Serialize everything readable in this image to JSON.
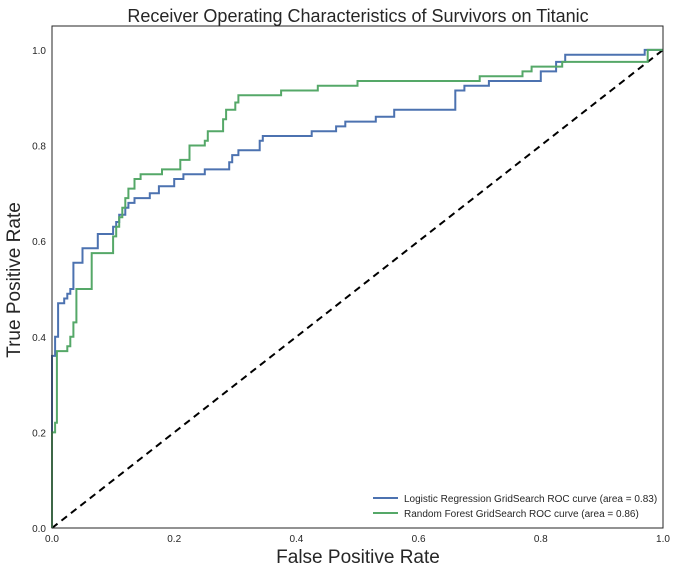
{
  "chart_data": {
    "type": "line",
    "title": "Receiver Operating Characteristics of Survivors on Titanic",
    "xlabel": "False Positive Rate",
    "ylabel": "True Positive Rate",
    "xlim": [
      0.0,
      1.0
    ],
    "ylim": [
      0.0,
      1.05
    ],
    "xticks": [
      "0.0",
      "0.2",
      "0.4",
      "0.6",
      "0.8",
      "1.0"
    ],
    "yticks": [
      "0.0",
      "0.2",
      "0.4",
      "0.6",
      "0.8",
      "1.0"
    ],
    "grid": false,
    "legend_position": "lower-right",
    "colors": {
      "logistic": "#4c72b0",
      "forest": "#55a868",
      "diagonal": "#000000"
    },
    "series": [
      {
        "name": "Logistic Regression GridSearch ROC curve (area = 0.83)",
        "color": "#4c72b0",
        "points": [
          [
            0.0,
            0.0
          ],
          [
            0.0,
            0.36
          ],
          [
            0.005,
            0.36
          ],
          [
            0.005,
            0.4
          ],
          [
            0.01,
            0.4
          ],
          [
            0.01,
            0.47
          ],
          [
            0.02,
            0.47
          ],
          [
            0.02,
            0.48
          ],
          [
            0.025,
            0.48
          ],
          [
            0.025,
            0.49
          ],
          [
            0.03,
            0.49
          ],
          [
            0.03,
            0.5
          ],
          [
            0.035,
            0.5
          ],
          [
            0.035,
            0.555
          ],
          [
            0.05,
            0.555
          ],
          [
            0.05,
            0.585
          ],
          [
            0.075,
            0.585
          ],
          [
            0.075,
            0.615
          ],
          [
            0.1,
            0.615
          ],
          [
            0.1,
            0.63
          ],
          [
            0.105,
            0.63
          ],
          [
            0.105,
            0.64
          ],
          [
            0.11,
            0.64
          ],
          [
            0.11,
            0.655
          ],
          [
            0.12,
            0.655
          ],
          [
            0.12,
            0.67
          ],
          [
            0.125,
            0.67
          ],
          [
            0.125,
            0.68
          ],
          [
            0.135,
            0.68
          ],
          [
            0.135,
            0.69
          ],
          [
            0.16,
            0.69
          ],
          [
            0.16,
            0.7
          ],
          [
            0.175,
            0.7
          ],
          [
            0.175,
            0.715
          ],
          [
            0.2,
            0.715
          ],
          [
            0.2,
            0.73
          ],
          [
            0.215,
            0.73
          ],
          [
            0.215,
            0.74
          ],
          [
            0.25,
            0.74
          ],
          [
            0.25,
            0.75
          ],
          [
            0.29,
            0.75
          ],
          [
            0.29,
            0.765
          ],
          [
            0.295,
            0.765
          ],
          [
            0.295,
            0.78
          ],
          [
            0.305,
            0.78
          ],
          [
            0.305,
            0.79
          ],
          [
            0.34,
            0.79
          ],
          [
            0.34,
            0.81
          ],
          [
            0.345,
            0.81
          ],
          [
            0.345,
            0.82
          ],
          [
            0.425,
            0.82
          ],
          [
            0.425,
            0.83
          ],
          [
            0.465,
            0.83
          ],
          [
            0.465,
            0.84
          ],
          [
            0.48,
            0.84
          ],
          [
            0.48,
            0.85
          ],
          [
            0.53,
            0.85
          ],
          [
            0.53,
            0.86
          ],
          [
            0.56,
            0.86
          ],
          [
            0.56,
            0.875
          ],
          [
            0.66,
            0.875
          ],
          [
            0.66,
            0.915
          ],
          [
            0.675,
            0.915
          ],
          [
            0.675,
            0.925
          ],
          [
            0.715,
            0.925
          ],
          [
            0.715,
            0.935
          ],
          [
            0.8,
            0.935
          ],
          [
            0.8,
            0.955
          ],
          [
            0.825,
            0.955
          ],
          [
            0.825,
            0.975
          ],
          [
            0.84,
            0.975
          ],
          [
            0.84,
            0.99
          ],
          [
            0.97,
            0.99
          ],
          [
            0.97,
            1.0
          ],
          [
            1.0,
            1.0
          ]
        ]
      },
      {
        "name": "Random Forest GridSearch ROC curve (area = 0.86)",
        "color": "#55a868",
        "points": [
          [
            0.0,
            0.0
          ],
          [
            0.0,
            0.2
          ],
          [
            0.005,
            0.2
          ],
          [
            0.005,
            0.22
          ],
          [
            0.008,
            0.22
          ],
          [
            0.008,
            0.37
          ],
          [
            0.025,
            0.37
          ],
          [
            0.025,
            0.38
          ],
          [
            0.03,
            0.38
          ],
          [
            0.03,
            0.4
          ],
          [
            0.035,
            0.4
          ],
          [
            0.035,
            0.43
          ],
          [
            0.04,
            0.43
          ],
          [
            0.04,
            0.5
          ],
          [
            0.065,
            0.5
          ],
          [
            0.065,
            0.575
          ],
          [
            0.1,
            0.575
          ],
          [
            0.1,
            0.61
          ],
          [
            0.105,
            0.61
          ],
          [
            0.105,
            0.63
          ],
          [
            0.11,
            0.63
          ],
          [
            0.11,
            0.65
          ],
          [
            0.115,
            0.65
          ],
          [
            0.115,
            0.67
          ],
          [
            0.12,
            0.67
          ],
          [
            0.12,
            0.69
          ],
          [
            0.125,
            0.69
          ],
          [
            0.125,
            0.71
          ],
          [
            0.135,
            0.71
          ],
          [
            0.135,
            0.73
          ],
          [
            0.145,
            0.73
          ],
          [
            0.145,
            0.74
          ],
          [
            0.18,
            0.74
          ],
          [
            0.18,
            0.75
          ],
          [
            0.21,
            0.75
          ],
          [
            0.21,
            0.77
          ],
          [
            0.225,
            0.77
          ],
          [
            0.225,
            0.8
          ],
          [
            0.25,
            0.8
          ],
          [
            0.25,
            0.81
          ],
          [
            0.255,
            0.81
          ],
          [
            0.255,
            0.83
          ],
          [
            0.28,
            0.83
          ],
          [
            0.28,
            0.855
          ],
          [
            0.285,
            0.855
          ],
          [
            0.285,
            0.875
          ],
          [
            0.3,
            0.875
          ],
          [
            0.3,
            0.89
          ],
          [
            0.305,
            0.89
          ],
          [
            0.305,
            0.905
          ],
          [
            0.375,
            0.905
          ],
          [
            0.375,
            0.915
          ],
          [
            0.435,
            0.915
          ],
          [
            0.435,
            0.925
          ],
          [
            0.5,
            0.925
          ],
          [
            0.5,
            0.935
          ],
          [
            0.7,
            0.935
          ],
          [
            0.7,
            0.945
          ],
          [
            0.77,
            0.945
          ],
          [
            0.77,
            0.955
          ],
          [
            0.785,
            0.955
          ],
          [
            0.785,
            0.965
          ],
          [
            0.835,
            0.965
          ],
          [
            0.835,
            0.975
          ],
          [
            0.975,
            0.975
          ],
          [
            0.975,
            1.0
          ],
          [
            1.0,
            1.0
          ]
        ]
      }
    ],
    "diagonal": {
      "points": [
        [
          0.0,
          0.0
        ],
        [
          1.0,
          1.0
        ]
      ],
      "style": "dashed"
    }
  }
}
